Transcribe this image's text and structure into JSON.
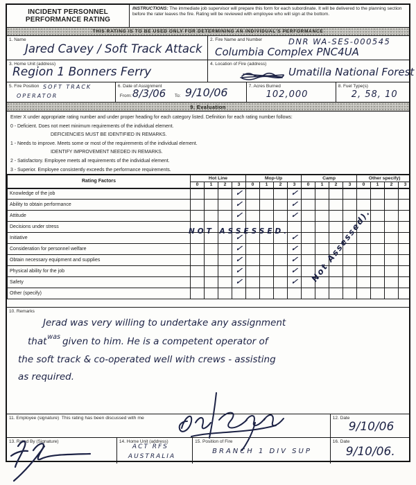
{
  "header": {
    "title_line1": "INCIDENT PERSONNEL",
    "title_line2": "PERFORMANCE RATING",
    "instructions_label": "INSTRUCTIONS:",
    "instructions_text": "The immediate job supervisor will prepare this form for each subordinate. It will be delivered to the planning section before the rater leaves the fire. Rating will be reviewed with employee who will sign at the bottom."
  },
  "banner": "THIS RATING IS TO BE USED ONLY FOR DETERMINING AN INDIVIDUAL'S PERFORMANCE",
  "fields": {
    "name": {
      "label": "1. Name",
      "value": "Jared Cavey / Soft Track Attack"
    },
    "fire_name": {
      "label": "2. Fire Name and Number",
      "value_line1": "DNR WA-SES-000545",
      "value_line2": "Columbia Complex  PNC4UA"
    },
    "home_unit": {
      "label": "3. Home Unit (address)",
      "value": "Region 1   Bonners Ferry"
    },
    "fire_location": {
      "label": "4. Location of Fire (address)",
      "value": "Umatilla National Forest"
    },
    "fire_position": {
      "label": "5. Fire Position",
      "value_line1": "SOFT TRACK",
      "value_line2": "OPERATOR"
    },
    "assignment": {
      "label": "6. Date of Assignment",
      "from_label": "From:",
      "from_value": "8/3/06",
      "to_label": "To:",
      "to_value": "9/10/06"
    },
    "acres": {
      "label": "7. Acres Burned",
      "value": "102,000"
    },
    "fuel": {
      "label": "8. Fuel Type(s)",
      "value": "2, 58, 10"
    }
  },
  "evaluation": {
    "band_label": "9. Evaluation",
    "definitions": [
      {
        "text": "Enter X under appropriate rating number and under proper heading for each category listed.  Definition for each rating number follows:",
        "indent": false
      },
      {
        "text": "0 - Deficient.  Does not meet minimum requirements of the individual element.",
        "indent": false
      },
      {
        "text": "DEFICIENCIES MUST BE IDENTIFIED IN REMARKS.",
        "indent": true
      },
      {
        "text": "1 - Needs to improve.  Meets some or most of the requirements of the individual element.",
        "indent": false
      },
      {
        "text": "IDENTIFY IMPROVEMENT NEEDED IN REMARKS.",
        "indent": true
      },
      {
        "text": "2 - Satisfactory.  Employee meets all requirements of the individual element.",
        "indent": false
      },
      {
        "text": "3 - Superior.  Employee consistently exceeds the performance requirements.",
        "indent": false
      }
    ]
  },
  "table": {
    "factor_header": "Rating Factors",
    "groups": [
      "Hot Line",
      "Mop-Up",
      "Camp",
      "Other specify)"
    ],
    "scale": [
      "0",
      "1",
      "2",
      "3"
    ],
    "check_glyph": "✓",
    "rows": [
      {
        "factor": "Knowledge of the job",
        "checks": {
          "hot_line": 3,
          "mop_up": 3
        }
      },
      {
        "factor": "Ability to obtain performance",
        "checks": {
          "hot_line": 3,
          "mop_up": 3
        }
      },
      {
        "factor": "Attitude",
        "checks": {
          "hot_line": 3,
          "mop_up": 3
        }
      },
      {
        "factor": "Decisions under stress",
        "checks": {},
        "note": "NOT ASSESSED."
      },
      {
        "factor": "Initiative",
        "checks": {
          "hot_line": 3,
          "mop_up": 3
        }
      },
      {
        "factor": "Consideration for personnel welfare",
        "checks": {
          "hot_line": 3,
          "mop_up": 3
        }
      },
      {
        "factor": "Obtain necessary equipment and supplies",
        "checks": {
          "hot_line": 3,
          "mop_up": 3
        }
      },
      {
        "factor": "Physical ability for the job",
        "checks": {
          "hot_line": 3,
          "mop_up": 3
        }
      },
      {
        "factor": "Safety",
        "checks": {
          "hot_line": 3,
          "mop_up": 3
        }
      },
      {
        "factor": "Other (specify)",
        "checks": {}
      }
    ],
    "decisions_note": "NOT ASSESSED.",
    "camp_note": "Not Assessed)."
  },
  "remarks": {
    "label": "10. Remarks",
    "line1": "Jerad was very willing to undertake any assignment",
    "line2_pre": "that",
    "line2_insert": "was",
    "line2_post": "given to him. He is a competent operator of",
    "line3": "the soft track & co-operated well with crews - assisting",
    "line4": "as required."
  },
  "signatures": {
    "employee": {
      "label": "11. Employee (signature)",
      "note": "This rating has been discussed with me",
      "signature_name": "Jared Cavey"
    },
    "employee_date": {
      "label": "12. Date",
      "value": "9/10/06"
    },
    "rated_by": {
      "label": "13. Rated By (Signature)"
    },
    "rater_home_unit": {
      "label": "14. Home Unit (address)",
      "value_line1": "ACT  RFS",
      "value_line2": "AUSTRALIA"
    },
    "position_of_fire": {
      "label": "15. Position of Fire",
      "value": "BRANCH 1 DIV SUP"
    },
    "rater_date": {
      "label": "16. Date",
      "value": "9/10/06."
    }
  },
  "ink_color": "#1c2245"
}
